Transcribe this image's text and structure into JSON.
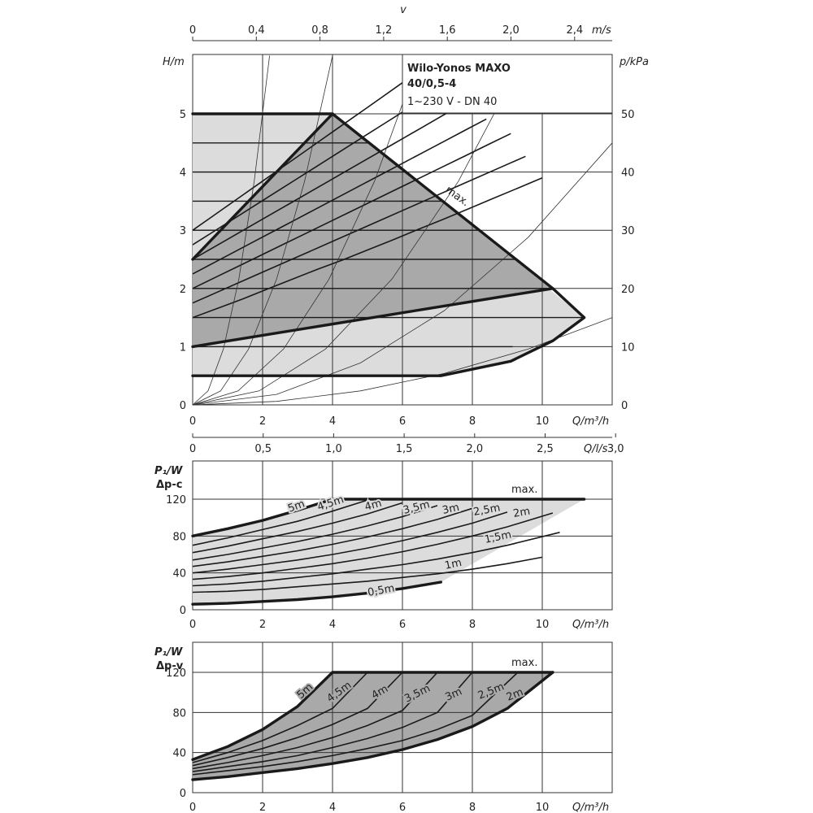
{
  "title": {
    "line1": "Wilo-Yonos MAXO",
    "line2": "40/0,5-4",
    "line3": "1~230 V - DN 40"
  },
  "colors": {
    "light_area": "#dcdcdc",
    "dark_area": "#a9a9a9",
    "line": "#1a1a1a",
    "grid": "#333333"
  },
  "chart_data": [
    {
      "type": "line",
      "id": "head-curve",
      "ylabel": "H/m",
      "y2label": "p/kPa",
      "xlabel": "Q/m³/h",
      "x2label": "v",
      "x2unit": "m/s",
      "x3label": "Q/l/s",
      "xlim": [
        0,
        12
      ],
      "ylim": [
        0,
        6
      ],
      "y2lim": [
        0,
        60
      ],
      "x_ticks": [
        "0",
        "2",
        "4",
        "6",
        "8",
        "10"
      ],
      "y_ticks": [
        "0",
        "1",
        "2",
        "3",
        "4",
        "5"
      ],
      "y2_ticks": [
        "0",
        "10",
        "20",
        "30",
        "40",
        "50"
      ],
      "v_ticks": [
        "0",
        "0,4",
        "0,8",
        "1,2",
        "1,6",
        "2,0",
        "2,4"
      ],
      "ls_ticks": [
        "0",
        "0,5",
        "1,0",
        "1,5",
        "2,0",
        "2,5",
        "3,0"
      ],
      "max_label": "max.",
      "envelope_light": [
        [
          0,
          5
        ],
        [
          4,
          5
        ],
        [
          11.2,
          1.5
        ],
        [
          10.3,
          1.1
        ],
        [
          9.1,
          0.75
        ],
        [
          7.1,
          0.5
        ],
        [
          0,
          0.5
        ]
      ],
      "envelope_dark": [
        [
          0,
          2.5
        ],
        [
          4,
          5
        ],
        [
          10.3,
          2
        ],
        [
          0,
          1
        ]
      ],
      "dp_c_lines": [
        0.5,
        1,
        1.5,
        2,
        2.5,
        3,
        3.5,
        4,
        4.5
      ],
      "dp_v_lines": [
        {
          "x": [
            0,
            0.72,
            1.43,
            2.14,
            2.86,
            3.57,
            4.29,
            5.0,
            5.71,
            6.43,
            7.14,
            7.86,
            8.57,
            9.29,
            10.0
          ],
          "y": [
            1.5,
            1.66,
            1.82,
            1.99,
            2.16,
            2.33,
            2.49,
            2.66,
            2.83,
            3.01,
            3.18,
            3.36,
            3.54,
            3.72,
            3.9
          ]
        },
        {
          "x": [
            0,
            0.68,
            1.36,
            2.04,
            2.72,
            3.4,
            4.08,
            4.76,
            5.44,
            6.12,
            6.8,
            7.48,
            8.16,
            8.84,
            9.52
          ],
          "y": [
            1.75,
            1.93,
            2.11,
            2.29,
            2.47,
            2.65,
            2.83,
            3.01,
            3.19,
            3.37,
            3.55,
            3.73,
            3.91,
            4.09,
            4.27
          ]
        },
        {
          "x": [
            0,
            0.65,
            1.3,
            1.95,
            2.6,
            3.25,
            3.9,
            4.55,
            5.2,
            5.85,
            6.5,
            7.15,
            7.8,
            8.45,
            9.1
          ],
          "y": [
            2.0,
            2.19,
            2.38,
            2.57,
            2.76,
            2.95,
            3.14,
            3.33,
            3.52,
            3.71,
            3.9,
            4.09,
            4.28,
            4.47,
            4.66
          ]
        },
        {
          "x": [
            0,
            0.6,
            1.2,
            1.8,
            2.4,
            3.0,
            3.6,
            4.2,
            4.8,
            5.4,
            6.0,
            6.6,
            7.2,
            7.8,
            8.4
          ],
          "y": [
            2.25,
            2.44,
            2.63,
            2.82,
            3.01,
            3.2,
            3.39,
            3.58,
            3.77,
            3.96,
            4.15,
            4.34,
            4.53,
            4.72,
            4.91
          ]
        },
        {
          "x": [
            0,
            0.55,
            1.1,
            1.65,
            2.2,
            2.75,
            3.3,
            3.85,
            4.4,
            4.95,
            5.5,
            6.05,
            6.6,
            7.15,
            7.7
          ],
          "y": [
            2.5,
            2.69,
            2.88,
            3.07,
            3.26,
            3.45,
            3.64,
            3.83,
            4.02,
            4.21,
            4.4,
            4.59,
            4.78,
            4.97,
            5.16
          ]
        },
        {
          "x": [
            0,
            0.5,
            1.0,
            1.5,
            2.0,
            2.5,
            3.0,
            3.5,
            4.0,
            4.5,
            5.0,
            5.5,
            6.0,
            6.5,
            7.0
          ],
          "y": [
            2.75,
            2.94,
            3.13,
            3.32,
            3.51,
            3.7,
            3.89,
            4.08,
            4.27,
            4.46,
            4.65,
            4.84,
            5.03,
            5.22,
            5.41
          ]
        },
        {
          "x": [
            0,
            0.45,
            0.9,
            1.35,
            1.8,
            2.25,
            2.7,
            3.15,
            3.6,
            4.05,
            4.5,
            4.95,
            5.4,
            5.85,
            6.3
          ],
          "y": [
            3.0,
            3.19,
            3.38,
            3.57,
            3.76,
            3.95,
            4.14,
            4.33,
            4.52,
            4.71,
            4.9,
            5.09,
            5.28,
            5.47,
            5.66
          ]
        }
      ],
      "system_curves": [
        {
          "x": [
            0,
            0.44,
            0.88,
            1.32,
            1.76,
            2.2
          ],
          "y": [
            0,
            0.24,
            0.96,
            2.16,
            3.84,
            6.0
          ]
        },
        {
          "x": [
            0,
            0.8,
            1.6,
            2.4,
            3.2,
            4.0
          ],
          "y": [
            0,
            0.24,
            0.96,
            2.16,
            3.84,
            6.0
          ]
        },
        {
          "x": [
            0,
            1.3,
            2.6,
            3.9,
            5.2,
            6.5
          ],
          "y": [
            0,
            0.24,
            0.96,
            2.16,
            3.84,
            6.0
          ]
        },
        {
          "x": [
            0,
            1.9,
            3.8,
            5.7,
            7.6,
            9.5
          ],
          "y": [
            0,
            0.24,
            0.96,
            2.16,
            3.84,
            6.0
          ]
        },
        {
          "x": [
            0,
            2.4,
            4.8,
            7.2,
            9.6,
            12.0
          ],
          "y": [
            0,
            0.18,
            0.72,
            1.62,
            2.88,
            4.5
          ]
        },
        {
          "x": [
            0,
            2.4,
            4.8,
            7.2,
            9.6,
            12.0
          ],
          "y": [
            0,
            0.06,
            0.24,
            0.54,
            0.96,
            1.5
          ]
        }
      ]
    },
    {
      "type": "line",
      "id": "power-dpc",
      "ylabel": "P₁/W",
      "ylabel2": "Δp-c",
      "xlabel": "Q/m³/h",
      "xlim": [
        0,
        12
      ],
      "ylim": [
        0,
        140
      ],
      "x_ticks": [
        "0",
        "2",
        "4",
        "6",
        "8",
        "10"
      ],
      "y_ticks": [
        "0",
        "40",
        "80",
        "120"
      ],
      "max_label": "max.",
      "curve_labels": [
        "5m",
        "4,5m",
        "4m",
        "3,5m",
        "3m",
        "2,5m",
        "2m",
        "1,5m",
        "1m",
        "0,5m"
      ],
      "series": [
        {
          "name": "5m",
          "x": [
            0,
            1,
            2,
            3,
            4
          ],
          "y": [
            80,
            88,
            97,
            108,
            120
          ],
          "thick": true
        },
        {
          "name": "4,5m",
          "x": [
            0,
            1,
            2,
            3,
            4,
            5
          ],
          "y": [
            70,
            78,
            87,
            96,
            107,
            119
          ]
        },
        {
          "name": "4m",
          "x": [
            0,
            1,
            2,
            3,
            4,
            5,
            6
          ],
          "y": [
            62,
            69,
            77,
            85,
            94,
            104,
            116
          ]
        },
        {
          "name": "3,5m",
          "x": [
            0,
            1,
            2,
            3,
            4,
            5,
            6,
            7
          ],
          "y": [
            54,
            60,
            67,
            74,
            82,
            91,
            101,
            113
          ]
        },
        {
          "name": "3m",
          "x": [
            0,
            1,
            2,
            3,
            4,
            5,
            6,
            7,
            8
          ],
          "y": [
            47,
            52,
            58,
            64,
            71,
            79,
            88,
            98,
            110
          ]
        },
        {
          "name": "2,5m",
          "x": [
            0,
            1,
            2,
            3,
            4,
            5,
            6,
            7,
            8,
            9
          ],
          "y": [
            40,
            44,
            49,
            54,
            60,
            67,
            75,
            84,
            94,
            106
          ]
        },
        {
          "name": "2m",
          "x": [
            0,
            1,
            2,
            3,
            4,
            5,
            6,
            7,
            8,
            9,
            10.3
          ],
          "y": [
            33,
            36,
            40,
            45,
            50,
            56,
            63,
            71,
            80,
            90,
            105
          ]
        },
        {
          "name": "1,5m",
          "x": [
            0,
            1,
            2,
            3,
            4,
            5,
            6,
            7,
            8,
            9,
            10.5
          ],
          "y": [
            26,
            28,
            31,
            35,
            39,
            44,
            49,
            55,
            62,
            70,
            84
          ]
        },
        {
          "name": "1m",
          "x": [
            0,
            1,
            2,
            3,
            4,
            5,
            6,
            7,
            8,
            9,
            10
          ],
          "y": [
            19,
            20,
            22,
            25,
            28,
            31,
            35,
            39,
            44,
            50,
            57
          ]
        },
        {
          "name": "0,5m",
          "x": [
            0,
            1,
            2,
            3,
            4,
            5,
            6,
            7.1
          ],
          "y": [
            6,
            7,
            9,
            11,
            14,
            18,
            23,
            30
          ],
          "thick": true
        }
      ],
      "max_line": {
        "x": [
          4,
          11.2
        ],
        "y": [
          120,
          120
        ]
      }
    },
    {
      "type": "line",
      "id": "power-dpv",
      "ylabel": "P₁/W",
      "ylabel2": "Δp-v",
      "xlabel": "Q/m³/h",
      "xlim": [
        0,
        12
      ],
      "ylim": [
        0,
        140
      ],
      "x_ticks": [
        "0",
        "2",
        "4",
        "6",
        "8",
        "10"
      ],
      "y_ticks": [
        "0",
        "40",
        "80",
        "120"
      ],
      "max_label": "max.",
      "curve_labels": [
        "5m",
        "4,5m",
        "4m",
        "3,5m",
        "3m",
        "2,5m",
        "2m"
      ],
      "series": [
        {
          "name": "5m",
          "x": [
            0,
            1,
            2,
            3,
            4
          ],
          "y": [
            33,
            46,
            63,
            86,
            120
          ],
          "thick": true
        },
        {
          "name": "4,5m",
          "x": [
            0,
            1,
            2,
            3,
            4,
            5
          ],
          "y": [
            30,
            40,
            52,
            67,
            84,
            120
          ]
        },
        {
          "name": "4m",
          "x": [
            0,
            1,
            2,
            3,
            4,
            5,
            6
          ],
          "y": [
            27,
            35,
            44,
            55,
            68,
            84,
            120
          ]
        },
        {
          "name": "3,5m",
          "x": [
            0,
            1,
            2,
            3,
            4,
            5,
            6,
            7
          ],
          "y": [
            24,
            30,
            37,
            45,
            55,
            67,
            82,
            120
          ]
        },
        {
          "name": "3m",
          "x": [
            0,
            1,
            2,
            3,
            4,
            5,
            6,
            7,
            8
          ],
          "y": [
            21,
            26,
            31,
            37,
            45,
            54,
            65,
            80,
            120
          ]
        },
        {
          "name": "2,5m",
          "x": [
            0,
            1,
            2,
            3,
            4,
            5,
            6,
            7,
            8,
            9.3
          ],
          "y": [
            18,
            22,
            26,
            31,
            37,
            44,
            52,
            63,
            77,
            120
          ]
        },
        {
          "name": "2m",
          "x": [
            0,
            1,
            2,
            3,
            4,
            5,
            6,
            7,
            8,
            9,
            10.3
          ],
          "y": [
            13,
            16,
            20,
            24,
            29,
            35,
            43,
            53,
            66,
            84,
            120
          ],
          "thick": true
        }
      ],
      "max_line": {
        "x": [
          4,
          10.3
        ],
        "y": [
          120,
          120
        ]
      }
    }
  ]
}
